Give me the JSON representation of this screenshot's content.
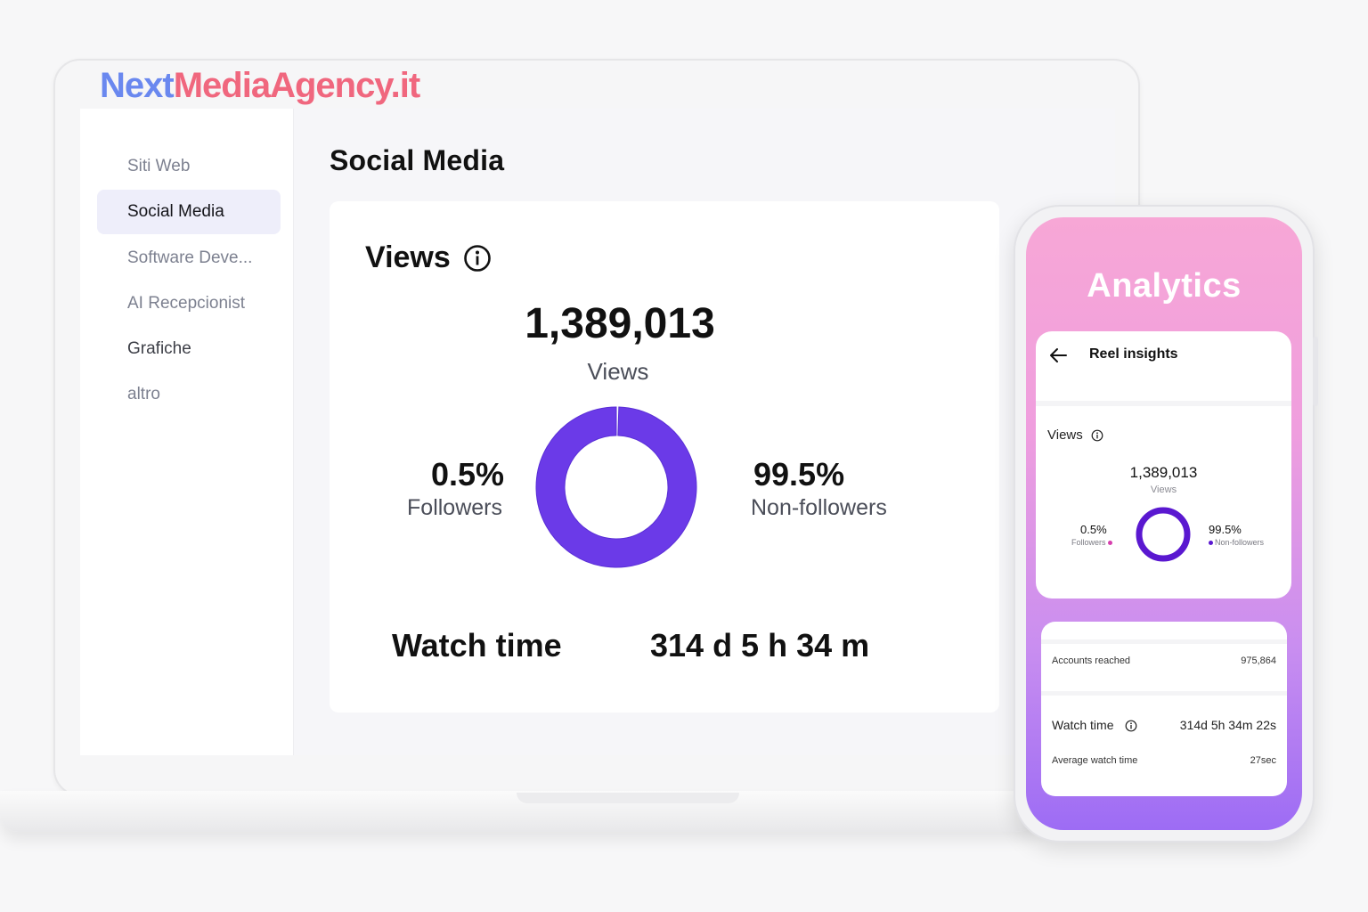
{
  "brand": {
    "part1": "Next",
    "part2": "MediaAgency.it"
  },
  "sidebar": {
    "items": [
      {
        "label": "Siti Web"
      },
      {
        "label": "Social Media"
      },
      {
        "label": "Software Deve..."
      },
      {
        "label": "AI Recepcionist"
      },
      {
        "label": "Grafiche"
      },
      {
        "label": "altro"
      }
    ],
    "active_index": 1
  },
  "main": {
    "title": "Social Media",
    "views_card": {
      "title": "Views",
      "total": "1,389,013",
      "total_label": "Views",
      "followers_pct": "0.5%",
      "followers_label": "Followers",
      "non_followers_pct": "99.5%",
      "non_followers_label": "Non-followers",
      "watch_time_label": "Watch time",
      "watch_time_value": "314 d 5 h 34 m"
    }
  },
  "phone": {
    "header": "Analytics",
    "screen_title": "Reel insights",
    "views_label": "Views",
    "views_total": "1,389,013",
    "views_total_label": "Views",
    "followers_pct": "0.5%",
    "followers_label": "Followers",
    "non_followers_pct": "99.5%",
    "non_followers_label": "Non-followers",
    "accounts_reached_label": "Accounts reached",
    "accounts_reached_value": "975,864",
    "watch_time_label": "Watch time",
    "watch_time_value": "314d 5h 34m 22s",
    "avg_watch_time_label": "Average watch time",
    "avg_watch_time_value": "27sec"
  },
  "chart_data": {
    "type": "pie",
    "categories": [
      "Followers",
      "Non-followers"
    ],
    "values": [
      0.5,
      99.5
    ]
  },
  "colors": {
    "accent": "#6b3ae8",
    "followers": "#d63fae",
    "non_followers": "#5a18d0",
    "brand_blue": "#6a88ef",
    "brand_pink": "#f0677e"
  }
}
